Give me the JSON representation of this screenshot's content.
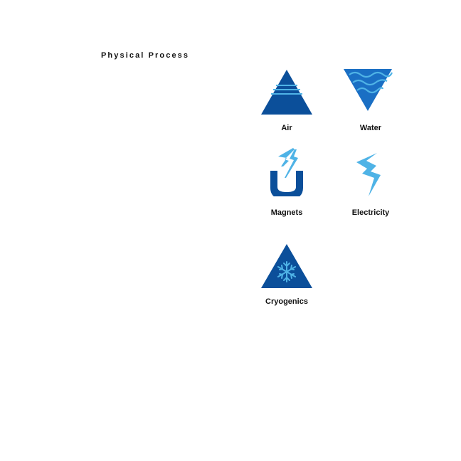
{
  "title": "Physical Process",
  "colors": {
    "dark_blue": "#0b4f9a",
    "light_blue": "#4fb3e6",
    "water_blue": "#1a6fc4",
    "text": "#111111"
  },
  "items": [
    {
      "label": "Air",
      "icon": "air-triangle-icon"
    },
    {
      "label": "Water",
      "icon": "water-inverted-triangle-icon"
    },
    {
      "label": "Magnets",
      "icon": "magnet-icon"
    },
    {
      "label": "Electricity",
      "icon": "lightning-bolt-icon"
    },
    {
      "label": "Cryogenics",
      "icon": "snowflake-triangle-icon"
    }
  ]
}
